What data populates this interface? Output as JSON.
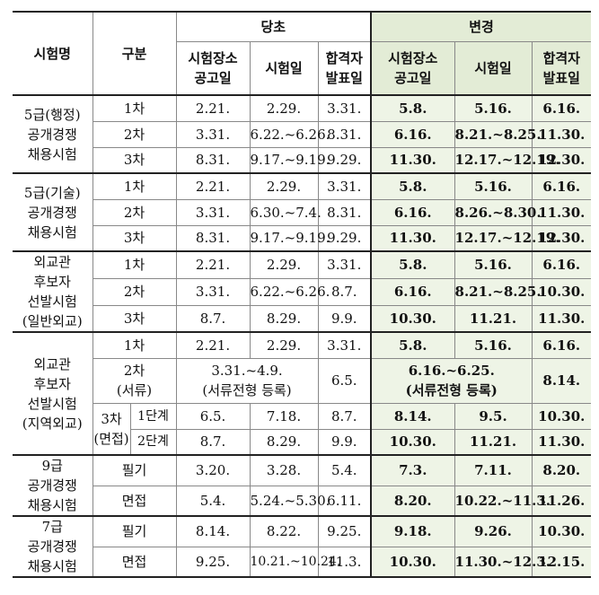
{
  "header": {
    "exam_name": "시험명",
    "category": "구분",
    "original": "당초",
    "changed": "변경",
    "venue_notice": "시험장소\n공고일",
    "exam_date": "시험일",
    "result_date": "합격자\n발표일"
  },
  "groups": [
    {
      "name": "5급(행정)\n공개경쟁\n채용시험",
      "rows": [
        {
          "stage": "1차",
          "o_venue": "2.21.",
          "o_exam": "2.29.",
          "o_result": "3.31.",
          "n_venue": "5.8.",
          "n_exam": "5.16.",
          "n_result": "6.16."
        },
        {
          "stage": "2차",
          "o_venue": "3.31.",
          "o_exam": "6.22.~6.26.",
          "o_result": "8.31.",
          "n_venue": "6.16.",
          "n_exam": "8.21.~8.25.",
          "n_result": "11.30."
        },
        {
          "stage": "3차",
          "o_venue": "8.31.",
          "o_exam": "9.17.~9.19.",
          "o_result": "9.29.",
          "n_venue": "11.30.",
          "n_exam": "12.17.~12.19.",
          "n_result": "12.30."
        }
      ]
    },
    {
      "name": "5급(기술)\n공개경쟁\n채용시험",
      "rows": [
        {
          "stage": "1차",
          "o_venue": "2.21.",
          "o_exam": "2.29.",
          "o_result": "3.31.",
          "n_venue": "5.8.",
          "n_exam": "5.16.",
          "n_result": "6.16."
        },
        {
          "stage": "2차",
          "o_venue": "3.31.",
          "o_exam": "6.30.~7.4.",
          "o_result": "8.31.",
          "n_venue": "6.16.",
          "n_exam": "8.26.~8.30.",
          "n_result": "11.30."
        },
        {
          "stage": "3차",
          "o_venue": "8.31.",
          "o_exam": "9.17.~9.19.",
          "o_result": "9.29.",
          "n_venue": "11.30.",
          "n_exam": "12.17.~12.19.",
          "n_result": "12.30."
        }
      ]
    },
    {
      "name": "외교관\n후보자\n선발시험\n(일반외교)",
      "rows": [
        {
          "stage": "1차",
          "o_venue": "2.21.",
          "o_exam": "2.29.",
          "o_result": "3.31.",
          "n_venue": "5.8.",
          "n_exam": "5.16.",
          "n_result": "6.16."
        },
        {
          "stage": "2차",
          "o_venue": "3.31.",
          "o_exam": "6.22.~6.26.",
          "o_result": "8.7.",
          "n_venue": "6.16.",
          "n_exam": "8.21.~8.25.",
          "n_result": "10.30."
        },
        {
          "stage": "3차",
          "o_venue": "8.7.",
          "o_exam": "8.29.",
          "o_result": "9.9.",
          "n_venue": "10.30.",
          "n_exam": "11.21.",
          "n_result": "11.30."
        }
      ]
    },
    {
      "name": "외교관\n후보자\n선발시험\n(지역외교)",
      "row1": {
        "stage": "1차",
        "o_venue": "2.21.",
        "o_exam": "2.29.",
        "o_result": "3.31.",
        "n_venue": "5.8.",
        "n_exam": "5.16.",
        "n_result": "6.16."
      },
      "row2": {
        "stage": "2차\n(서류)",
        "o_merged": "3.31.~4.9.\n(서류전형 등록)",
        "o_result": "6.5.",
        "n_merged": "6.16.~6.25.\n(서류전형 등록)",
        "n_result": "8.14."
      },
      "row3_label": "3차\n(면접)",
      "row3a": {
        "sub": "1단계",
        "o_venue": "6.5.",
        "o_exam": "7.18.",
        "o_result": "8.7.",
        "n_venue": "8.14.",
        "n_exam": "9.5.",
        "n_result": "10.30."
      },
      "row3b": {
        "sub": "2단계",
        "o_venue": "8.7.",
        "o_exam": "8.29.",
        "o_result": "9.9.",
        "n_venue": "10.30.",
        "n_exam": "11.21.",
        "n_result": "11.30."
      }
    },
    {
      "name": "9급\n공개경쟁\n채용시험",
      "rows": [
        {
          "stage": "필기",
          "o_venue": "3.20.",
          "o_exam": "3.28.",
          "o_result": "5.4.",
          "n_venue": "7.3.",
          "n_exam": "7.11.",
          "n_result": "8.20."
        },
        {
          "stage": "면접",
          "o_venue": "5.4.",
          "o_exam": "5.24.~5.30.",
          "o_result": "6.11.",
          "n_venue": "8.20.",
          "n_exam": "10.22.~11.3.",
          "n_result": "11.26."
        }
      ]
    },
    {
      "name": "7급\n공개경쟁\n채용시험",
      "rows": [
        {
          "stage": "필기",
          "o_venue": "8.14.",
          "o_exam": "8.22.",
          "o_result": "9.25.",
          "n_venue": "9.18.",
          "n_exam": "9.26.",
          "n_result": "10.30."
        },
        {
          "stage": "면접",
          "o_venue": "9.25.",
          "o_exam": "10.21.~10.24.",
          "o_result": "11.3.",
          "n_venue": "10.30.",
          "n_exam": "11.30.~12.3.",
          "n_result": "12.15."
        }
      ]
    }
  ]
}
